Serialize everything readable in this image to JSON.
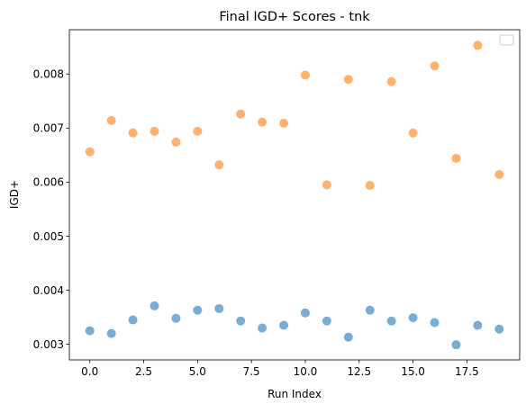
{
  "chart_data": {
    "type": "scatter",
    "title": "Final IGD+ Scores - tnk",
    "xlabel": "Run Index",
    "ylabel": "IGD+",
    "xlim": [
      -0.95,
      19.95
    ],
    "ylim": [
      0.00271,
      0.00882
    ],
    "x_ticks": [
      0.0,
      2.5,
      5.0,
      7.5,
      10.0,
      12.5,
      15.0,
      17.5
    ],
    "x_tick_labels": [
      "0.0",
      "2.5",
      "5.0",
      "7.5",
      "10.0",
      "12.5",
      "15.0",
      "17.5"
    ],
    "y_ticks": [
      0.003,
      0.004,
      0.005,
      0.006,
      0.007,
      0.008
    ],
    "y_tick_labels": [
      "0.003",
      "0.004",
      "0.005",
      "0.006",
      "0.007",
      "0.008"
    ],
    "grid": false,
    "legend": {
      "placement": "top-right",
      "entries": []
    },
    "x": [
      0,
      1,
      2,
      3,
      4,
      5,
      6,
      7,
      8,
      9,
      10,
      11,
      12,
      13,
      14,
      15,
      16,
      17,
      18,
      19
    ],
    "series": [
      {
        "color": "#1f77b4",
        "values": [
          0.00325,
          0.0032,
          0.00345,
          0.00371,
          0.00348,
          0.00363,
          0.00366,
          0.00343,
          0.0033,
          0.00335,
          0.00358,
          0.00343,
          0.00313,
          0.00363,
          0.00343,
          0.00349,
          0.0034,
          0.00299,
          0.00335,
          0.00328
        ]
      },
      {
        "color": "#ff7f0e",
        "values": [
          0.00656,
          0.00714,
          0.00691,
          0.00694,
          0.00674,
          0.00694,
          0.00632,
          0.00726,
          0.00711,
          0.00709,
          0.00798,
          0.00595,
          0.0079,
          0.00594,
          0.00786,
          0.00691,
          0.00815,
          0.00644,
          0.00853,
          0.00614
        ]
      }
    ]
  }
}
